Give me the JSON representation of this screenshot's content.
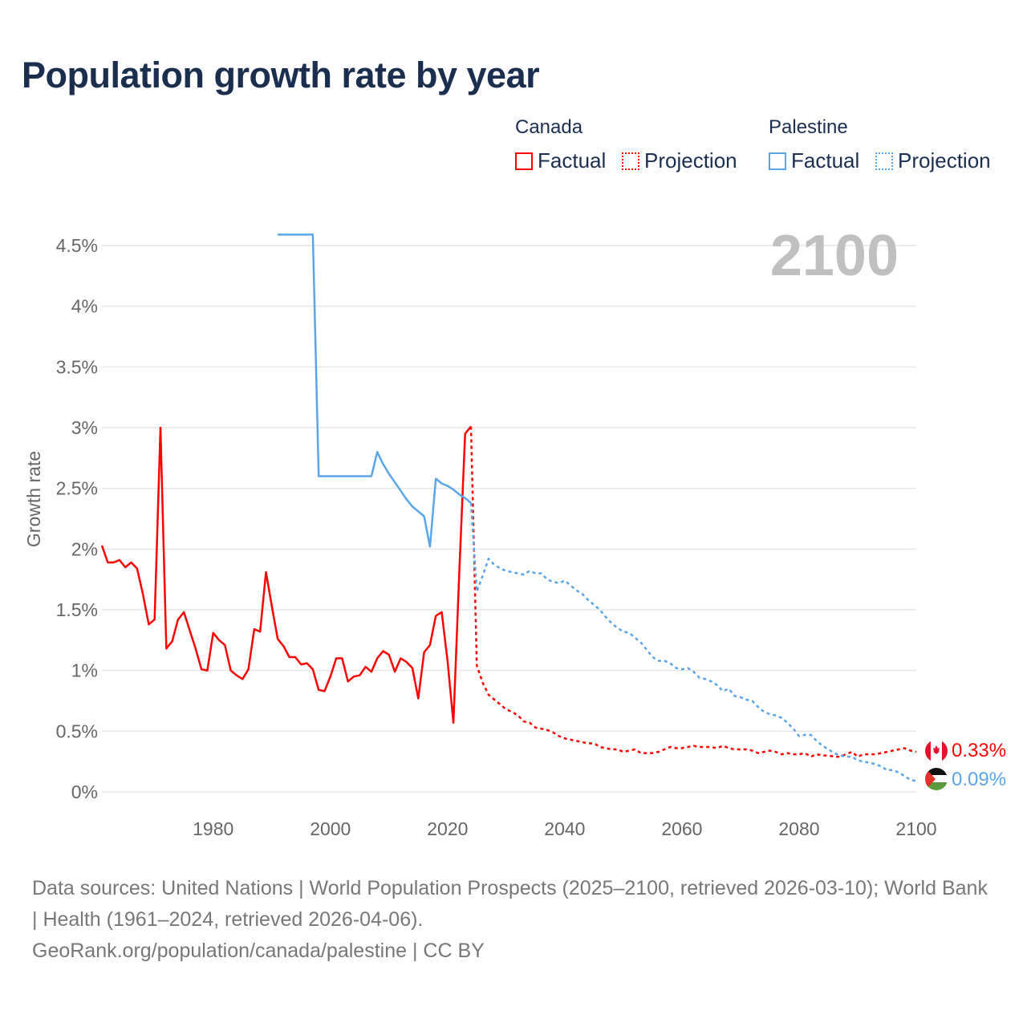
{
  "title": "Population growth rate by year",
  "legend": {
    "groups": [
      {
        "country": "Canada",
        "factual": "Factual",
        "projection": "Projection",
        "color": "#ff0000"
      },
      {
        "country": "Palestine",
        "factual": "Factual",
        "projection": "Projection",
        "color": "#5aa5e8"
      }
    ]
  },
  "current_year": "2100",
  "end_labels": {
    "canada": "0.33%",
    "palestine": "0.09%"
  },
  "footer": {
    "sources": "Data sources: United Nations | World Population Prospects (2025–2100, retrieved 2026-03-10); World Bank | Health (1961–2024, retrieved 2026-04-06).",
    "credit": "GeoRank.org/population/canada/palestine | CC BY"
  },
  "chart_data": {
    "type": "line",
    "title": "Population growth rate by year",
    "xlabel": "",
    "ylabel": "Growth rate",
    "xlim": [
      1961,
      2100
    ],
    "ylim": [
      0,
      4.5
    ],
    "x_ticks": [
      "1980",
      "2000",
      "2020",
      "2040",
      "2060",
      "2080",
      "2100"
    ],
    "y_ticks": [
      "0%",
      "0.5%",
      "1%",
      "1.5%",
      "2%",
      "2.5%",
      "3%",
      "3.5%",
      "4%",
      "4.5%"
    ],
    "grid": true,
    "legend_position": "top-right",
    "series": [
      {
        "name": "Canada Factual",
        "color": "#ff0000",
        "dashed": false,
        "start_year": 1961,
        "values": [
          2.03,
          1.89,
          1.89,
          1.91,
          1.85,
          1.89,
          1.84,
          1.63,
          1.38,
          1.42,
          3.0,
          1.18,
          1.24,
          1.42,
          1.48,
          1.33,
          1.18,
          1.01,
          1.0,
          1.31,
          1.25,
          1.21,
          1.0,
          0.96,
          0.93,
          1.01,
          1.34,
          1.32,
          1.81,
          1.53,
          1.26,
          1.2,
          1.11,
          1.11,
          1.05,
          1.06,
          1.01,
          0.84,
          0.83,
          0.95,
          1.1,
          1.1,
          0.91,
          0.95,
          0.96,
          1.03,
          0.99,
          1.1,
          1.16,
          1.13,
          0.99,
          1.1,
          1.07,
          1.02,
          0.77,
          1.15,
          1.21,
          1.45,
          1.48,
          1.08,
          0.57,
          1.8,
          2.95,
          3.01
        ]
      },
      {
        "name": "Canada Projection",
        "color": "#ff0000",
        "dashed": true,
        "start_year": 2024,
        "values": [
          3.01,
          1.04,
          0.9,
          0.8,
          0.76,
          0.72,
          0.68,
          0.66,
          0.63,
          0.58,
          0.57,
          0.53,
          0.52,
          0.51,
          0.49,
          0.46,
          0.44,
          0.43,
          0.42,
          0.41,
          0.4,
          0.4,
          0.37,
          0.36,
          0.35,
          0.35,
          0.33,
          0.34,
          0.35,
          0.32,
          0.32,
          0.32,
          0.33,
          0.35,
          0.37,
          0.36,
          0.36,
          0.37,
          0.38,
          0.37,
          0.37,
          0.37,
          0.36,
          0.38,
          0.36,
          0.35,
          0.35,
          0.35,
          0.34,
          0.32,
          0.33,
          0.34,
          0.33,
          0.31,
          0.32,
          0.31,
          0.31,
          0.32,
          0.29,
          0.31,
          0.3,
          0.3,
          0.29,
          0.29,
          0.31,
          0.33,
          0.29,
          0.31,
          0.31,
          0.31,
          0.32,
          0.33,
          0.34,
          0.35,
          0.36,
          0.34,
          0.33
        ]
      },
      {
        "name": "Palestine Factual",
        "color": "#5aa5e8",
        "dashed": false,
        "start_year": 1991,
        "values": [
          4.59,
          4.59,
          4.59,
          4.59,
          4.59,
          4.59,
          4.59,
          2.6,
          2.6,
          2.6,
          2.6,
          2.6,
          2.6,
          2.6,
          2.6,
          2.6,
          2.6,
          2.8,
          2.7,
          2.62,
          2.55,
          2.48,
          2.41,
          2.35,
          2.31,
          2.27,
          2.02,
          2.58,
          2.54,
          2.52,
          2.49,
          2.45,
          2.42,
          2.38
        ]
      },
      {
        "name": "Palestine Projection",
        "color": "#5aa5e8",
        "dashed": true,
        "start_year": 2024,
        "values": [
          2.38,
          1.65,
          1.78,
          1.92,
          1.87,
          1.84,
          1.82,
          1.81,
          1.8,
          1.79,
          1.82,
          1.8,
          1.8,
          1.75,
          1.73,
          1.72,
          1.74,
          1.7,
          1.66,
          1.63,
          1.58,
          1.54,
          1.5,
          1.44,
          1.39,
          1.35,
          1.32,
          1.31,
          1.27,
          1.23,
          1.17,
          1.11,
          1.08,
          1.08,
          1.06,
          1.02,
          1.01,
          1.02,
          0.99,
          0.94,
          0.93,
          0.91,
          0.88,
          0.83,
          0.85,
          0.79,
          0.78,
          0.76,
          0.75,
          0.7,
          0.66,
          0.64,
          0.63,
          0.61,
          0.57,
          0.52,
          0.46,
          0.47,
          0.47,
          0.42,
          0.38,
          0.35,
          0.32,
          0.3,
          0.29,
          0.29,
          0.26,
          0.25,
          0.24,
          0.23,
          0.21,
          0.18,
          0.18,
          0.16,
          0.13,
          0.1,
          0.09
        ]
      }
    ]
  }
}
